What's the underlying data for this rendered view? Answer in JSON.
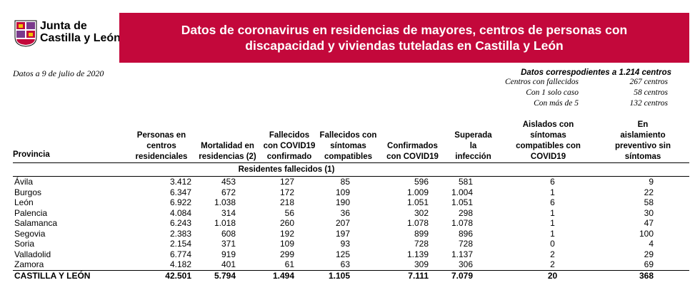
{
  "header": {
    "logo_lines": [
      "Junta de",
      "Castilla y León"
    ],
    "date": "Datos a 9 de julio de 2020",
    "title": "Datos de coronavirus en residencias de mayores, centros de personas con discapacidad y viviendas tuteladas en Castilla y León"
  },
  "summary": {
    "heading": "Datos correspodientes a 1.214 centros",
    "rows": [
      [
        "Centros con fallecidos",
        "267 centros"
      ],
      [
        "Con 1 solo caso",
        "58 centros"
      ],
      [
        "Con más de 5",
        "132 centros"
      ]
    ]
  },
  "table": {
    "columns": [
      "Provincia",
      "Personas en centros residenciales",
      "Mortalidad en residencias (2)",
      "Fallecidos con COVID19 confirmado",
      "Fallecidos con síntomas compatibles",
      "Confirmados con COVID19",
      "Superada la infección",
      "Aislados con síntomas compatibles con COVID19",
      "En aislamiento preventivo sin síntomas"
    ],
    "subheader": "Residentes fallecidos (1)",
    "rows": [
      [
        "Ávila",
        "3.412",
        "453",
        "127",
        "85",
        "596",
        "581",
        "6",
        "9"
      ],
      [
        "Burgos",
        "6.347",
        "672",
        "172",
        "109",
        "1.009",
        "1.004",
        "1",
        "22"
      ],
      [
        "León",
        "6.922",
        "1.038",
        "218",
        "190",
        "1.051",
        "1.051",
        "6",
        "58"
      ],
      [
        "Palencia",
        "4.084",
        "314",
        "56",
        "36",
        "302",
        "298",
        "1",
        "30"
      ],
      [
        "Salamanca",
        "6.243",
        "1.018",
        "260",
        "207",
        "1.078",
        "1.078",
        "1",
        "47"
      ],
      [
        "Segovia",
        "2.383",
        "608",
        "192",
        "197",
        "899",
        "896",
        "1",
        "100"
      ],
      [
        "Soria",
        "2.154",
        "371",
        "109",
        "93",
        "728",
        "728",
        "0",
        "4"
      ],
      [
        "Valladolid",
        "6.774",
        "919",
        "299",
        "125",
        "1.139",
        "1.137",
        "2",
        "29"
      ],
      [
        "Zamora",
        "4.182",
        "401",
        "61",
        "63",
        "309",
        "306",
        "2",
        "69"
      ]
    ],
    "total": [
      "CASTILLA Y LEÓN",
      "42.501",
      "5.794",
      "1.494",
      "1.105",
      "7.111",
      "7.079",
      "20",
      "368"
    ]
  }
}
